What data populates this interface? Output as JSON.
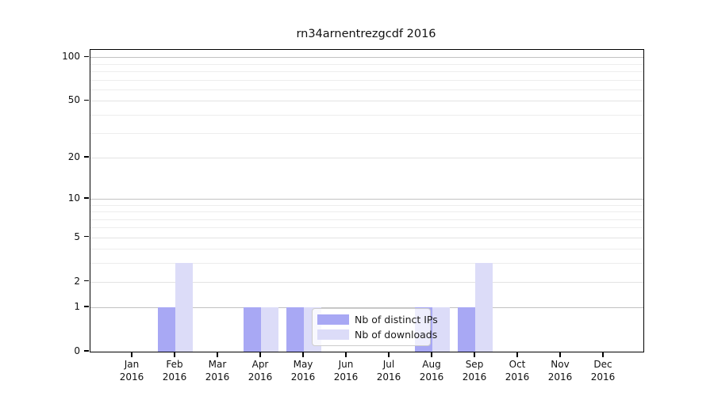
{
  "chart_data": {
    "type": "bar",
    "title": "rn34arnentrezgcdf 2016",
    "categories": [
      {
        "month": "Jan",
        "year": "2016"
      },
      {
        "month": "Feb",
        "year": "2016"
      },
      {
        "month": "Mar",
        "year": "2016"
      },
      {
        "month": "Apr",
        "year": "2016"
      },
      {
        "month": "May",
        "year": "2016"
      },
      {
        "month": "Jun",
        "year": "2016"
      },
      {
        "month": "Jul",
        "year": "2016"
      },
      {
        "month": "Aug",
        "year": "2016"
      },
      {
        "month": "Sep",
        "year": "2016"
      },
      {
        "month": "Oct",
        "year": "2016"
      },
      {
        "month": "Nov",
        "year": "2016"
      },
      {
        "month": "Dec",
        "year": "2016"
      }
    ],
    "series": [
      {
        "name": "Nb of distinct IPs",
        "color": "#a8a8f4",
        "values": [
          0,
          1,
          0,
          1,
          1,
          0,
          0,
          1,
          1,
          0,
          0,
          0
        ]
      },
      {
        "name": "Nb of downloads",
        "color": "#dcdcf8",
        "values": [
          0,
          3,
          0,
          1,
          1,
          0,
          0,
          1,
          3,
          0,
          0,
          0
        ]
      }
    ],
    "y_scale": "log1p",
    "y_ticks": [
      0,
      1,
      2,
      5,
      10,
      20,
      50,
      100
    ],
    "decade_gridlines": [
      1,
      10,
      100
    ],
    "major_gridlines": [
      2,
      5,
      20,
      50
    ],
    "minor_gridlines": [
      3,
      4,
      6,
      7,
      8,
      9,
      30,
      40,
      60,
      70,
      80,
      90
    ],
    "ylim": [
      0,
      112
    ],
    "grid": true,
    "legend_position": "lower center",
    "colors": {
      "decade_grid": "#c2c2c2",
      "major_grid": "#e3e3e3",
      "minor_grid": "#ededed",
      "axis": "#000000",
      "legend_border": "#cccccc"
    }
  }
}
